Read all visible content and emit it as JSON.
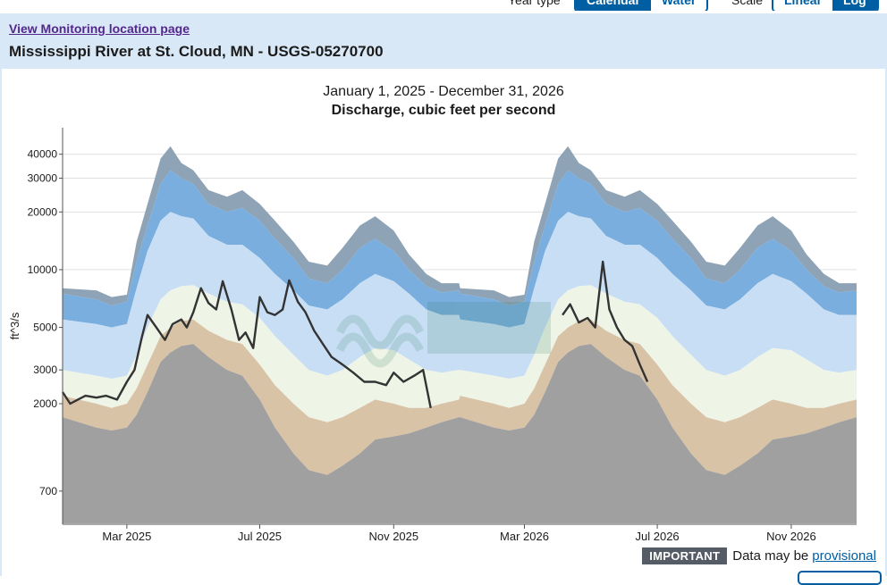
{
  "controls": {
    "year_type_label": "Year type",
    "year_type_options": [
      "Calendar",
      "Water"
    ],
    "year_type_selected": "Calendar",
    "scale_label": "Scale",
    "scale_options": [
      "Linear",
      "Log"
    ],
    "scale_selected": "Log"
  },
  "header": {
    "link_text": "View Monitoring location page",
    "site_name": "Mississippi River at St. Cloud, MN - USGS-05270700"
  },
  "notice": {
    "badge": "IMPORTANT",
    "text": "Data may be",
    "link": "provisional"
  },
  "colors": {
    "band_max": "#8ea3b5",
    "band_upper": "#7aaede",
    "band_upper_mid": "#c7def4",
    "band_mid": "#eef4e6",
    "band_lower_mid": "#d9c3a7",
    "band_min": "#a0a0a0",
    "observed": "#333333",
    "grid": "#e0e0e0"
  },
  "chart_data": {
    "type": "area",
    "title": "January 1, 2025 - December 31, 2026",
    "subtitle": "Discharge, cubic feet per second",
    "ylabel": "ft^3/s",
    "yscale": "log",
    "ylim": [
      470,
      55000
    ],
    "xlim": [
      "2025-01-01",
      "2026-12-31"
    ],
    "y_ticks": [
      700,
      2000,
      3000,
      5000,
      10000,
      20000,
      30000,
      40000
    ],
    "y_tick_labels": [
      "700",
      "2000",
      "3000",
      "5000",
      "10000",
      "20000",
      "30000",
      "40000"
    ],
    "x_ticks": [
      "2025-03-01",
      "2025-07-01",
      "2025-11-01",
      "2026-03-01",
      "2026-07-01",
      "2026-11-01"
    ],
    "x_tick_labels": [
      "Mar 2025",
      "Jul 2025",
      "Nov 2025",
      "Mar 2026",
      "Jul 2026",
      "Nov 2026"
    ],
    "stat_dates": [
      "01-01",
      "02-01",
      "02-15",
      "03-01",
      "03-10",
      "03-20",
      "04-01",
      "04-10",
      "04-20",
      "05-01",
      "05-15",
      "06-01",
      "06-15",
      "07-01",
      "07-15",
      "08-01",
      "08-15",
      "09-01",
      "09-15",
      "10-01",
      "10-15",
      "11-01",
      "11-15",
      "12-01",
      "12-15",
      "12-31"
    ],
    "series": [
      {
        "values": [
          8000,
          7800,
          7200,
          7400,
          14000,
          22000,
          38000,
          44000,
          36000,
          33000,
          26000,
          24000,
          26000,
          22000,
          18000,
          14000,
          11000,
          10500,
          13000,
          17000,
          19000,
          16000,
          12000,
          9500,
          8500,
          8500
        ]
      },
      {
        "values": [
          7500,
          7000,
          6500,
          6800,
          11000,
          17000,
          28000,
          33000,
          30000,
          28000,
          22000,
          20000,
          21000,
          18000,
          14500,
          11500,
          9000,
          8500,
          10000,
          13000,
          14500,
          12500,
          10000,
          8200,
          7600,
          7800
        ]
      },
      {
        "values": [
          5500,
          5200,
          5000,
          5200,
          8000,
          12500,
          18000,
          20000,
          19000,
          18500,
          15000,
          13500,
          13500,
          11500,
          9500,
          7800,
          6500,
          6200,
          7000,
          8500,
          9500,
          8700,
          7500,
          6200,
          5800,
          5800
        ]
      },
      {
        "values": [
          3000,
          2800,
          2700,
          2800,
          3600,
          5000,
          7000,
          7800,
          8200,
          8300,
          7500,
          6800,
          6600,
          5600,
          4500,
          3600,
          3000,
          2800,
          3000,
          3500,
          3900,
          3800,
          3400,
          3000,
          2900,
          3000
        ]
      },
      {
        "values": [
          2200,
          2000,
          1900,
          2000,
          2400,
          3200,
          4500,
          5000,
          5400,
          5500,
          4800,
          4300,
          4100,
          3200,
          2500,
          2000,
          1700,
          1600,
          1700,
          1900,
          2100,
          2000,
          1900,
          1900,
          2000,
          2100
        ]
      },
      {
        "values": [
          1700,
          1500,
          1450,
          1500,
          1750,
          2300,
          3300,
          3700,
          4000,
          4100,
          3500,
          3000,
          2800,
          2100,
          1500,
          1100,
          900,
          850,
          950,
          1100,
          1300,
          1350,
          1400,
          1500,
          1600,
          1700
        ]
      }
    ],
    "observed": {
      "name": "observed",
      "x": [
        "2025-01-01",
        "2025-01-08",
        "2025-01-15",
        "2025-01-22",
        "2025-02-01",
        "2025-02-10",
        "2025-02-20",
        "2025-03-01",
        "2025-03-08",
        "2025-03-15",
        "2025-03-20",
        "2025-03-28",
        "2025-04-05",
        "2025-04-12",
        "2025-04-20",
        "2025-04-25",
        "2025-05-01",
        "2025-05-08",
        "2025-05-15",
        "2025-05-22",
        "2025-05-28",
        "2025-06-05",
        "2025-06-12",
        "2025-06-18",
        "2025-06-25",
        "2025-07-01",
        "2025-07-08",
        "2025-07-15",
        "2025-07-22",
        "2025-07-28",
        "2025-08-05",
        "2025-08-12",
        "2025-08-20",
        "2025-08-28",
        "2025-09-05",
        "2025-09-15",
        "2025-09-25",
        "2025-10-05",
        "2025-10-15",
        "2025-10-25",
        "2025-11-01",
        "2025-11-10",
        "2025-11-20",
        "2025-11-28",
        "2025-12-05"
      ],
      "y": [
        2300,
        2000,
        2100,
        2200,
        2150,
        2200,
        2100,
        2600,
        3000,
        4500,
        5800,
        5000,
        4300,
        5200,
        5500,
        5000,
        6000,
        8000,
        6700,
        6200,
        8700,
        6200,
        4300,
        4700,
        3900,
        7200,
        6000,
        5800,
        6200,
        8800,
        6800,
        6000,
        4800,
        4100,
        3500,
        3200,
        2900,
        2600,
        2600,
        2500,
        2900,
        2600,
        2800,
        3000,
        1900
      ]
    },
    "observed_2": {
      "name": "observed",
      "x": [
        "2026-04-05",
        "2026-04-12",
        "2026-04-20",
        "2026-04-28",
        "2026-05-05",
        "2026-05-12",
        "2026-05-18",
        "2026-05-25",
        "2026-06-01",
        "2026-06-08",
        "2026-06-15",
        "2026-06-22"
      ],
      "y": [
        5800,
        6600,
        5300,
        5600,
        5000,
        11000,
        6200,
        5000,
        4300,
        4000,
        3200,
        2600
      ]
    }
  }
}
